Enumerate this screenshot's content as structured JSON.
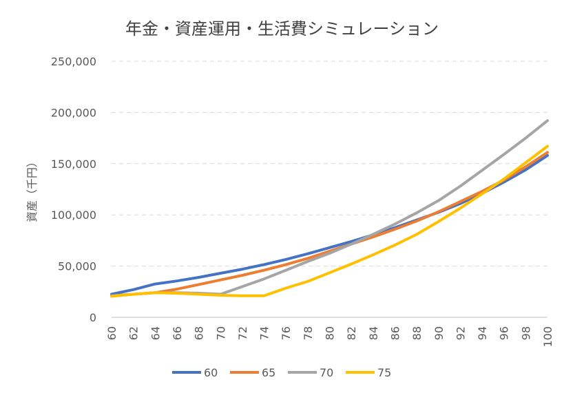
{
  "chart_data": {
    "type": "line",
    "title": "年金・資産運用・生活費シミュレーション",
    "ylabel": "資産（千円）",
    "xlabel": "",
    "ylim": [
      0,
      250000
    ],
    "y_ticks": [
      "0",
      "50,000",
      "100,000",
      "150,000",
      "200,000",
      "250,000"
    ],
    "x_ticks": [
      "60",
      "62",
      "64",
      "66",
      "68",
      "70",
      "72",
      "74",
      "76",
      "78",
      "80",
      "82",
      "84",
      "86",
      "88",
      "90",
      "92",
      "94",
      "96",
      "98",
      "100"
    ],
    "x": [
      60,
      62,
      64,
      66,
      68,
      70,
      72,
      74,
      76,
      78,
      80,
      82,
      84,
      86,
      88,
      90,
      92,
      94,
      96,
      98,
      100
    ],
    "grid": true,
    "legend": "bottom",
    "series": [
      {
        "name": "60",
        "color": "#4472C4",
        "values": [
          22500,
          27000,
          32500,
          35500,
          39000,
          43000,
          47000,
          51500,
          56500,
          62000,
          68000,
          74000,
          80500,
          87500,
          95000,
          102500,
          111000,
          121000,
          132000,
          144000,
          158000
        ]
      },
      {
        "name": "65",
        "color": "#ED7D31",
        "values": [
          21000,
          22500,
          24000,
          27500,
          32000,
          36500,
          41000,
          46000,
          51500,
          57500,
          64500,
          71500,
          78500,
          86000,
          94000,
          103000,
          113000,
          123000,
          134000,
          147000,
          161000
        ]
      },
      {
        "name": "70",
        "color": "#A5A5A5",
        "values": [
          21000,
          22500,
          24000,
          24000,
          23500,
          22500,
          30000,
          37500,
          46000,
          54500,
          62500,
          71500,
          81000,
          91000,
          102000,
          114000,
          128000,
          143500,
          159000,
          175000,
          192000
        ]
      },
      {
        "name": "75",
        "color": "#FFC000",
        "values": [
          20500,
          22500,
          24000,
          23500,
          22500,
          21500,
          21000,
          21000,
          28500,
          35000,
          43500,
          52000,
          61000,
          70500,
          81000,
          93500,
          106500,
          120500,
          135000,
          151000,
          167000
        ]
      }
    ]
  }
}
